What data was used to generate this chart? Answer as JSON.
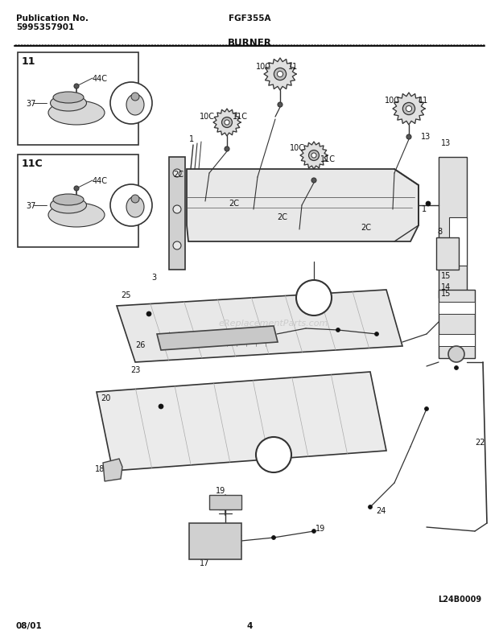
{
  "title_left_line1": "Publication No.",
  "title_left_line2": "5995357901",
  "title_center": "FGF355A",
  "section_title": "BURNER",
  "page_num": "4",
  "date": "08/01",
  "diagram_id": "L24B0009",
  "bg_color": "#ffffff",
  "text_color": "#111111",
  "watermark": "eReplacementParts.com",
  "line_color": "#222222",
  "light_gray": "#cccccc",
  "med_gray": "#888888"
}
